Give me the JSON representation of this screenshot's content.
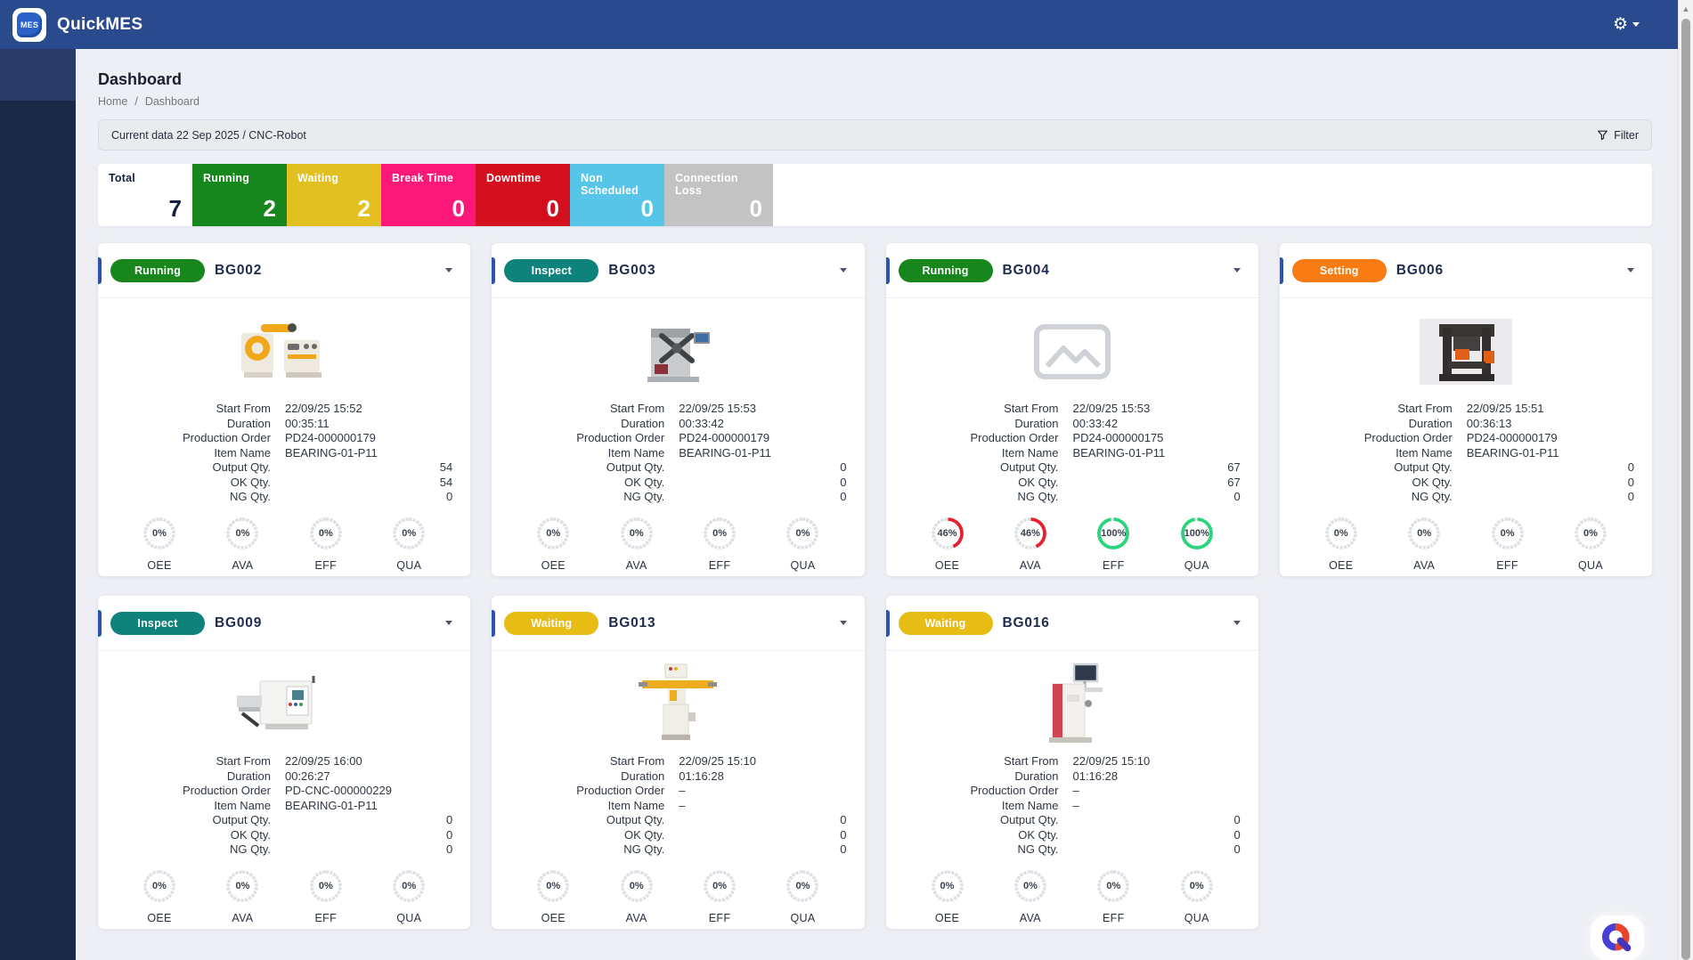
{
  "navbar": {
    "brand": "QuickMES",
    "logo_text": "MES"
  },
  "icons": {
    "gear": "⚙",
    "scroll_up": "▲"
  },
  "page": {
    "title": "Dashboard",
    "breadcrumb_home": "Home",
    "breadcrumb_sep": "/",
    "breadcrumb_current": "Dashboard"
  },
  "filter_bar": {
    "text": "Current data 22 Sep 2025 / CNC-Robot",
    "button_label": "Filter"
  },
  "summary": {
    "items": [
      {
        "label": "Total",
        "value": "7",
        "bg": "#ffffff",
        "fg": "#14213d"
      },
      {
        "label": "Running",
        "value": "2",
        "bg": "#17871d",
        "fg": "#ffffff"
      },
      {
        "label": "Waiting",
        "value": "2",
        "bg": "#e2c01f",
        "fg": "#ffffff"
      },
      {
        "label": "Break Time",
        "value": "0",
        "bg": "#fb1878",
        "fg": "#ffffff"
      },
      {
        "label": "Downtime",
        "value": "0",
        "bg": "#d30f1d",
        "fg": "#ffffff"
      },
      {
        "label": "Non Scheduled",
        "value": "0",
        "bg": "#56c5e8",
        "fg": "#ffffff"
      },
      {
        "label": "Connection Loss",
        "value": "0",
        "bg": "#c3c3c3",
        "fg": "#ffffff"
      }
    ]
  },
  "cards": [
    {
      "name": "BG002",
      "status": "Running",
      "status_color": "#17871d",
      "image": "decoiler",
      "details": [
        [
          "Start From",
          "22/09/25 15:52",
          ""
        ],
        [
          "Duration",
          "00:35:11",
          ""
        ],
        [
          "Production Order",
          "PD24-000000179",
          ""
        ],
        [
          "Item Name",
          "BEARING-01-P11",
          ""
        ],
        [
          "Output Qty.",
          "",
          "54"
        ],
        [
          "OK Qty.",
          "",
          "54"
        ],
        [
          "NG Qty.",
          "",
          "0"
        ]
      ],
      "gauges": [
        {
          "label": "OEE",
          "text": "0%",
          "value": 0,
          "color": ""
        },
        {
          "label": "AVA",
          "text": "0%",
          "value": 0,
          "color": ""
        },
        {
          "label": "EFF",
          "text": "0%",
          "value": 0,
          "color": ""
        },
        {
          "label": "QUA",
          "text": "0%",
          "value": 0,
          "color": ""
        }
      ]
    },
    {
      "name": "BG003",
      "status": "Inspect",
      "status_color": "#0f837b",
      "image": "spring_former",
      "details": [
        [
          "Start From",
          "22/09/25 15:53",
          ""
        ],
        [
          "Duration",
          "00:33:42",
          ""
        ],
        [
          "Production Order",
          "PD24-000000179",
          ""
        ],
        [
          "Item Name",
          "BEARING-01-P11",
          ""
        ],
        [
          "Output Qty.",
          "",
          "0"
        ],
        [
          "OK Qty.",
          "",
          "0"
        ],
        [
          "NG Qty.",
          "",
          "0"
        ]
      ],
      "gauges": [
        {
          "label": "OEE",
          "text": "0%",
          "value": 0,
          "color": ""
        },
        {
          "label": "AVA",
          "text": "0%",
          "value": 0,
          "color": ""
        },
        {
          "label": "EFF",
          "text": "0%",
          "value": 0,
          "color": ""
        },
        {
          "label": "QUA",
          "text": "0%",
          "value": 0,
          "color": ""
        }
      ]
    },
    {
      "name": "BG004",
      "status": "Running",
      "status_color": "#17871d",
      "image": "placeholder",
      "details": [
        [
          "Start From",
          "22/09/25 15:53",
          ""
        ],
        [
          "Duration",
          "00:33:42",
          ""
        ],
        [
          "Production Order",
          "PD24-000000175",
          ""
        ],
        [
          "Item Name",
          "BEARING-01-P11",
          ""
        ],
        [
          "Output Qty.",
          "",
          "67"
        ],
        [
          "OK Qty.",
          "",
          "67"
        ],
        [
          "NG Qty.",
          "",
          "0"
        ]
      ],
      "gauges": [
        {
          "label": "OEE",
          "text": "46%",
          "value": 46,
          "color": "#e6212d"
        },
        {
          "label": "AVA",
          "text": "46%",
          "value": 46,
          "color": "#e6212d"
        },
        {
          "label": "EFF",
          "text": "100%",
          "value": 100,
          "color": "#2bd47d"
        },
        {
          "label": "QUA",
          "text": "100%",
          "value": 100,
          "color": "#2bd47d"
        }
      ]
    },
    {
      "name": "BG006",
      "status": "Setting",
      "status_color": "#f87c13",
      "image": "press",
      "details": [
        [
          "Start From",
          "22/09/25 15:51",
          ""
        ],
        [
          "Duration",
          "00:36:13",
          ""
        ],
        [
          "Production Order",
          "PD24-000000179",
          ""
        ],
        [
          "Item Name",
          "BEARING-01-P11",
          ""
        ],
        [
          "Output Qty.",
          "",
          "0"
        ],
        [
          "OK Qty.",
          "",
          "0"
        ],
        [
          "NG Qty.",
          "",
          "0"
        ]
      ],
      "gauges": [
        {
          "label": "OEE",
          "text": "0%",
          "value": 0,
          "color": ""
        },
        {
          "label": "AVA",
          "text": "0%",
          "value": 0,
          "color": ""
        },
        {
          "label": "EFF",
          "text": "0%",
          "value": 0,
          "color": ""
        },
        {
          "label": "QUA",
          "text": "0%",
          "value": 0,
          "color": ""
        }
      ]
    },
    {
      "name": "BG009",
      "status": "Inspect",
      "status_color": "#0f837b",
      "image": "cutter",
      "details": [
        [
          "Start From",
          "22/09/25 16:00",
          ""
        ],
        [
          "Duration",
          "00:26:27",
          ""
        ],
        [
          "Production Order",
          "PD-CNC-000000229",
          ""
        ],
        [
          "Item Name",
          "BEARING-01-P11",
          ""
        ],
        [
          "Output Qty.",
          "",
          "0"
        ],
        [
          "OK Qty.",
          "",
          "0"
        ],
        [
          "NG Qty.",
          "",
          "0"
        ]
      ],
      "gauges": [
        {
          "label": "OEE",
          "text": "0%",
          "value": 0,
          "color": ""
        },
        {
          "label": "AVA",
          "text": "0%",
          "value": 0,
          "color": ""
        },
        {
          "label": "EFF",
          "text": "0%",
          "value": 0,
          "color": ""
        },
        {
          "label": "QUA",
          "text": "0%",
          "value": 0,
          "color": ""
        }
      ]
    },
    {
      "name": "BG013",
      "status": "Waiting",
      "status_color": "#e7bc15",
      "image": "transfer_robot",
      "details": [
        [
          "Start From",
          "22/09/25 15:10",
          ""
        ],
        [
          "Duration",
          "01:16:28",
          ""
        ],
        [
          "Production Order",
          "–",
          ""
        ],
        [
          "Item Name",
          "–",
          ""
        ],
        [
          "Output Qty.",
          "",
          "0"
        ],
        [
          "OK Qty.",
          "",
          "0"
        ],
        [
          "NG Qty.",
          "",
          "0"
        ]
      ],
      "gauges": [
        {
          "label": "OEE",
          "text": "0%",
          "value": 0,
          "color": ""
        },
        {
          "label": "AVA",
          "text": "0%",
          "value": 0,
          "color": ""
        },
        {
          "label": "EFF",
          "text": "0%",
          "value": 0,
          "color": ""
        },
        {
          "label": "QUA",
          "text": "0%",
          "value": 0,
          "color": ""
        }
      ]
    },
    {
      "name": "BG016",
      "status": "Waiting",
      "status_color": "#e7bc15",
      "image": "wire_bender",
      "details": [
        [
          "Start From",
          "22/09/25 15:10",
          ""
        ],
        [
          "Duration",
          "01:16:28",
          ""
        ],
        [
          "Production Order",
          "–",
          ""
        ],
        [
          "Item Name",
          "–",
          ""
        ],
        [
          "Output Qty.",
          "",
          "0"
        ],
        [
          "OK Qty.",
          "",
          "0"
        ],
        [
          "NG Qty.",
          "",
          "0"
        ]
      ],
      "gauges": [
        {
          "label": "OEE",
          "text": "0%",
          "value": 0,
          "color": ""
        },
        {
          "label": "AVA",
          "text": "0%",
          "value": 0,
          "color": ""
        },
        {
          "label": "EFF",
          "text": "0%",
          "value": 0,
          "color": ""
        },
        {
          "label": "QUA",
          "text": "0%",
          "value": 0,
          "color": ""
        }
      ]
    }
  ]
}
